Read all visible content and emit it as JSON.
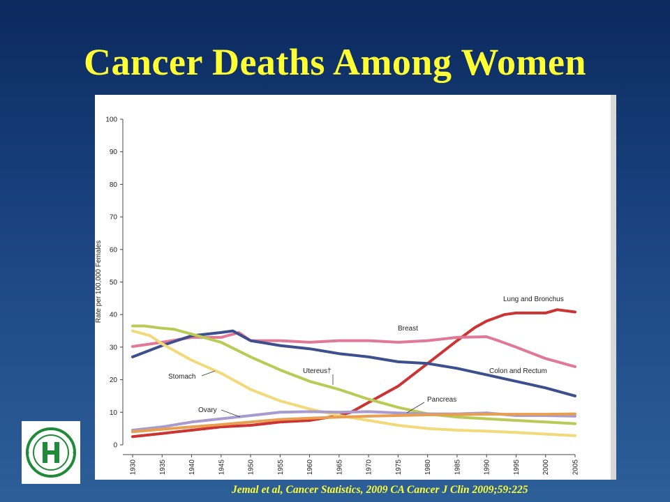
{
  "slide": {
    "title": "Cancer Deaths Among Women",
    "citation": "Jemal et al, Cancer Statistics, 2009 CA Cancer J Clin 2009;59:225"
  },
  "logo": {
    "letter": "H",
    "ring_text": "HACKENSACK UNIVERSITY MEDICAL CENTER",
    "color": "#1f8a3a"
  },
  "chart_data": {
    "type": "line",
    "ylabel": "Rate per 100,000 Females",
    "xlabel": "",
    "ylim": [
      0,
      100
    ],
    "yticks": [
      0,
      10,
      20,
      30,
      40,
      50,
      60,
      70,
      80,
      90,
      100
    ],
    "xlim": [
      1930,
      2005
    ],
    "xticks": [
      1930,
      1935,
      1940,
      1945,
      1950,
      1955,
      1960,
      1965,
      1970,
      1975,
      1980,
      1985,
      1990,
      1995,
      2000,
      2005
    ],
    "series": [
      {
        "name": "Lung and Bronchus",
        "color": "#cc3333",
        "x": [
          1930,
          1935,
          1940,
          1945,
          1950,
          1955,
          1960,
          1965,
          1967,
          1970,
          1975,
          1980,
          1985,
          1988,
          1990,
          1993,
          1995,
          2000,
          2002,
          2005
        ],
        "y": [
          2.5,
          3.5,
          4.5,
          5.5,
          6,
          7,
          7.5,
          9,
          10,
          13,
          18,
          25,
          32,
          36,
          38,
          40,
          40.5,
          40.5,
          41.5,
          40.8
        ]
      },
      {
        "name": "Breast",
        "color": "#e07896",
        "x": [
          1930,
          1935,
          1940,
          1945,
          1948,
          1950,
          1955,
          1960,
          1965,
          1970,
          1975,
          1980,
          1985,
          1990,
          1992,
          1995,
          2000,
          2005
        ],
        "y": [
          30.2,
          31.5,
          33,
          33,
          34.5,
          32,
          32,
          31.5,
          32,
          32,
          31.5,
          32,
          33,
          33.2,
          32,
          30,
          26.5,
          24
        ]
      },
      {
        "name": "Colon and Rectum",
        "color": "#3d4f8c",
        "x": [
          1930,
          1935,
          1940,
          1945,
          1947,
          1950,
          1955,
          1960,
          1965,
          1970,
          1975,
          1980,
          1985,
          1990,
          1995,
          2000,
          2005
        ],
        "y": [
          27,
          30.5,
          33.5,
          34.5,
          35,
          32,
          30.5,
          29.5,
          28,
          27,
          25.5,
          25,
          23.5,
          21.5,
          19.5,
          17.5,
          15
        ]
      },
      {
        "name": "Utereus†",
        "color": "#b8cc55",
        "x": [
          1930,
          1932,
          1935,
          1937,
          1940,
          1943,
          1945,
          1950,
          1955,
          1960,
          1965,
          1970,
          1975,
          1980,
          1985,
          1990,
          1995,
          2000,
          2005
        ],
        "y": [
          36.5,
          36.5,
          35.8,
          35.5,
          34,
          32.5,
          31.5,
          27,
          23,
          19.5,
          17,
          14,
          11.5,
          9.5,
          8.5,
          8,
          7.5,
          7,
          6.5
        ]
      },
      {
        "name": "Stomach",
        "color": "#f2d97a",
        "x": [
          1930,
          1933,
          1935,
          1940,
          1945,
          1950,
          1955,
          1960,
          1965,
          1970,
          1975,
          1980,
          1985,
          1990,
          1995,
          2000,
          2005
        ],
        "y": [
          35,
          33.5,
          31,
          26,
          22,
          17,
          13.5,
          11,
          9,
          7.5,
          6,
          5,
          4.5,
          4.2,
          3.8,
          3.3,
          2.8
        ]
      },
      {
        "name": "Ovary",
        "color": "#a89bcf",
        "x": [
          1930,
          1935,
          1940,
          1945,
          1950,
          1955,
          1960,
          1965,
          1970,
          1975,
          1980,
          1985,
          1990,
          1995,
          2000,
          2005
        ],
        "y": [
          4.5,
          5.5,
          7,
          8,
          9,
          10,
          10.2,
          10,
          10.2,
          9.8,
          9.5,
          9.5,
          9.8,
          9,
          9,
          8.8
        ]
      },
      {
        "name": "Pancreas",
        "color": "#e8a050",
        "x": [
          1930,
          1935,
          1940,
          1945,
          1950,
          1955,
          1960,
          1965,
          1970,
          1975,
          1980,
          1985,
          1990,
          1995,
          2000,
          2005
        ],
        "y": [
          4,
          4.8,
          5.5,
          6.2,
          7,
          7.8,
          8.2,
          8.5,
          8.8,
          9,
          9.2,
          9.3,
          9.4,
          9.4,
          9.4,
          9.5
        ]
      }
    ],
    "annotations": [
      {
        "text": "Lung and Bronchus",
        "series": "Lung and Bronchus"
      },
      {
        "text": "Breast",
        "series": "Breast"
      },
      {
        "text": "Colon and Rectum",
        "series": "Colon and Rectum"
      },
      {
        "text": "Utereus†",
        "series": "Utereus†"
      },
      {
        "text": "Stomach",
        "series": "Stomach"
      },
      {
        "text": "Ovary",
        "series": "Ovary"
      },
      {
        "text": "Pancreas",
        "series": "Pancreas"
      }
    ]
  }
}
